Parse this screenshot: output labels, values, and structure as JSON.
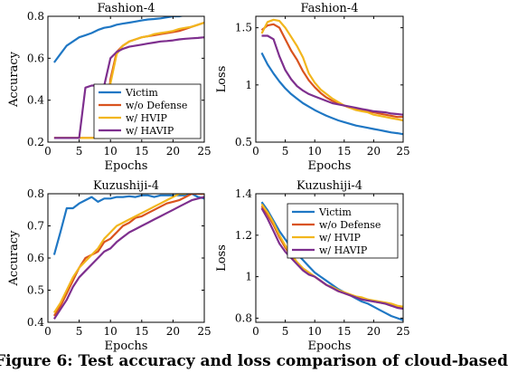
{
  "caption": "Figure 6: Test accuracy and loss comparison of cloud-based",
  "colors": {
    "victim": "#1f77c4",
    "wo_defense": "#d9531e",
    "hvip": "#f2b61d",
    "havip": "#7e2f8e"
  },
  "chart_data": [
    {
      "type": "line",
      "title": "Fashion-4",
      "xlabel": "Epochs",
      "ylabel": "Accuracy",
      "xlim": [
        0,
        25
      ],
      "ylim": [
        0.2,
        0.8
      ],
      "xticks": [
        "0",
        "5",
        "10",
        "15",
        "20",
        "25"
      ],
      "yticks": [
        "0.2",
        "0.4",
        "0.6",
        "0.8"
      ],
      "legend": "lower-center",
      "grid": false,
      "series": [
        {
          "name": "Victim",
          "color": "victim",
          "x": [
            1,
            2,
            3,
            4,
            5,
            6,
            7,
            8,
            9,
            10,
            11,
            12,
            13,
            14,
            15,
            16,
            17,
            18,
            19,
            20,
            21,
            22,
            23,
            24,
            25
          ],
          "values": [
            0.58,
            0.62,
            0.66,
            0.68,
            0.7,
            0.71,
            0.72,
            0.735,
            0.745,
            0.75,
            0.76,
            0.765,
            0.77,
            0.775,
            0.78,
            0.785,
            0.787,
            0.79,
            0.795,
            0.8,
            0.8,
            0.805,
            0.81,
            0.81,
            0.81
          ]
        },
        {
          "name": "w/o Defense",
          "color": "wo_defense",
          "x": [
            1,
            2,
            3,
            4,
            5,
            6,
            7,
            8,
            9,
            10,
            11,
            12,
            13,
            14,
            15,
            16,
            17,
            18,
            19,
            20,
            21,
            22,
            23,
            24,
            25
          ],
          "values": [
            0.22,
            0.22,
            0.22,
            0.22,
            0.22,
            0.22,
            0.22,
            0.22,
            0.22,
            0.5,
            0.63,
            0.66,
            0.68,
            0.69,
            0.7,
            0.705,
            0.71,
            0.715,
            0.72,
            0.725,
            0.73,
            0.74,
            0.75,
            0.76,
            0.77
          ]
        },
        {
          "name": "w/ HVIP",
          "color": "hvip",
          "x": [
            1,
            2,
            3,
            4,
            5,
            6,
            7,
            8,
            9,
            10,
            11,
            12,
            13,
            14,
            15,
            16,
            17,
            18,
            19,
            20,
            21,
            22,
            23,
            24,
            25
          ],
          "values": [
            0.22,
            0.22,
            0.22,
            0.22,
            0.22,
            0.22,
            0.22,
            0.22,
            0.22,
            0.48,
            0.62,
            0.66,
            0.68,
            0.69,
            0.7,
            0.705,
            0.715,
            0.72,
            0.725,
            0.73,
            0.74,
            0.745,
            0.75,
            0.76,
            0.77
          ]
        },
        {
          "name": "w/ HAVIP",
          "color": "havip",
          "x": [
            1,
            2,
            3,
            4,
            5,
            6,
            7,
            8,
            9,
            10,
            11,
            12,
            13,
            14,
            15,
            16,
            17,
            18,
            19,
            20,
            21,
            22,
            23,
            24,
            25
          ],
          "values": [
            0.22,
            0.22,
            0.22,
            0.22,
            0.22,
            0.46,
            0.47,
            0.47,
            0.47,
            0.6,
            0.63,
            0.645,
            0.655,
            0.66,
            0.665,
            0.67,
            0.675,
            0.68,
            0.682,
            0.685,
            0.69,
            0.693,
            0.695,
            0.697,
            0.7
          ]
        }
      ]
    },
    {
      "type": "line",
      "title": "Fashion-4",
      "xlabel": "Epochs",
      "ylabel": "Loss",
      "xlim": [
        0,
        25
      ],
      "ylim": [
        0.5,
        1.6
      ],
      "xticks": [
        "0",
        "5",
        "10",
        "15",
        "20",
        "25"
      ],
      "yticks": [
        "0.5",
        "1",
        "1.5"
      ],
      "grid": false,
      "series": [
        {
          "name": "Victim",
          "color": "victim",
          "x": [
            1,
            2,
            3,
            4,
            5,
            6,
            7,
            8,
            9,
            10,
            11,
            12,
            13,
            14,
            15,
            16,
            17,
            18,
            19,
            20,
            21,
            22,
            23,
            24,
            25
          ],
          "values": [
            1.28,
            1.18,
            1.1,
            1.03,
            0.97,
            0.92,
            0.88,
            0.84,
            0.81,
            0.78,
            0.755,
            0.73,
            0.71,
            0.69,
            0.675,
            0.66,
            0.645,
            0.635,
            0.625,
            0.615,
            0.605,
            0.595,
            0.585,
            0.578,
            0.57
          ]
        },
        {
          "name": "w/o Defense",
          "color": "wo_defense",
          "x": [
            1,
            2,
            3,
            4,
            5,
            6,
            7,
            8,
            9,
            10,
            11,
            12,
            13,
            14,
            15,
            16,
            17,
            18,
            19,
            20,
            21,
            22,
            23,
            24,
            25
          ],
          "values": [
            1.48,
            1.52,
            1.53,
            1.5,
            1.4,
            1.3,
            1.22,
            1.12,
            1.04,
            0.98,
            0.93,
            0.89,
            0.86,
            0.84,
            0.82,
            0.8,
            0.79,
            0.78,
            0.77,
            0.76,
            0.75,
            0.74,
            0.73,
            0.72,
            0.72
          ]
        },
        {
          "name": "w/ HVIP",
          "color": "hvip",
          "x": [
            1,
            2,
            3,
            4,
            5,
            6,
            7,
            8,
            9,
            10,
            11,
            12,
            13,
            14,
            15,
            16,
            17,
            18,
            19,
            20,
            21,
            22,
            23,
            24,
            25
          ],
          "values": [
            1.45,
            1.55,
            1.57,
            1.56,
            1.5,
            1.42,
            1.34,
            1.24,
            1.1,
            1.02,
            0.96,
            0.92,
            0.88,
            0.85,
            0.82,
            0.8,
            0.78,
            0.77,
            0.76,
            0.74,
            0.73,
            0.72,
            0.71,
            0.7,
            0.69
          ]
        },
        {
          "name": "w/ HAVIP",
          "color": "havip",
          "x": [
            1,
            2,
            3,
            4,
            5,
            6,
            7,
            8,
            9,
            10,
            11,
            12,
            13,
            14,
            15,
            16,
            17,
            18,
            19,
            20,
            21,
            22,
            23,
            24,
            25
          ],
          "values": [
            1.43,
            1.43,
            1.4,
            1.25,
            1.13,
            1.05,
            0.99,
            0.95,
            0.92,
            0.9,
            0.88,
            0.86,
            0.84,
            0.83,
            0.82,
            0.81,
            0.8,
            0.79,
            0.78,
            0.77,
            0.765,
            0.76,
            0.75,
            0.745,
            0.74
          ]
        }
      ]
    },
    {
      "type": "line",
      "title": "Kuzushiji-4",
      "xlabel": "Epochs",
      "ylabel": "Accuracy",
      "xlim": [
        0,
        25
      ],
      "ylim": [
        0.4,
        0.8
      ],
      "xticks": [
        "0",
        "5",
        "10",
        "15",
        "20",
        "25"
      ],
      "yticks": [
        "0.4",
        "0.5",
        "0.6",
        "0.7",
        "0.8"
      ],
      "grid": false,
      "series": [
        {
          "name": "Victim",
          "color": "victim",
          "x": [
            1,
            2,
            3,
            4,
            5,
            6,
            7,
            8,
            9,
            10,
            11,
            12,
            13,
            14,
            15,
            16,
            17,
            18,
            19,
            20,
            21,
            22,
            23,
            24,
            25
          ],
          "values": [
            0.61,
            0.68,
            0.755,
            0.755,
            0.77,
            0.78,
            0.79,
            0.775,
            0.785,
            0.785,
            0.79,
            0.79,
            0.792,
            0.79,
            0.795,
            0.795,
            0.79,
            0.795,
            0.795,
            0.795,
            0.795,
            0.795,
            0.8,
            0.79,
            0.785
          ]
        },
        {
          "name": "w/o Defense",
          "color": "wo_defense",
          "x": [
            1,
            2,
            3,
            4,
            5,
            6,
            7,
            8,
            9,
            10,
            11,
            12,
            13,
            14,
            15,
            16,
            17,
            18,
            19,
            20,
            21,
            22,
            23,
            24,
            25
          ],
          "values": [
            0.42,
            0.45,
            0.49,
            0.53,
            0.57,
            0.6,
            0.61,
            0.62,
            0.65,
            0.66,
            0.68,
            0.7,
            0.71,
            0.725,
            0.73,
            0.74,
            0.75,
            0.76,
            0.77,
            0.775,
            0.78,
            0.79,
            0.8,
            0.8,
            0.8
          ]
        },
        {
          "name": "w/ HVIP",
          "color": "hvip",
          "x": [
            1,
            2,
            3,
            4,
            5,
            6,
            7,
            8,
            9,
            10,
            11,
            12,
            13,
            14,
            15,
            16,
            17,
            18,
            19,
            20,
            21,
            22,
            23,
            24,
            25
          ],
          "values": [
            0.43,
            0.46,
            0.5,
            0.54,
            0.57,
            0.59,
            0.61,
            0.63,
            0.66,
            0.68,
            0.7,
            0.71,
            0.72,
            0.73,
            0.74,
            0.75,
            0.76,
            0.77,
            0.78,
            0.79,
            0.8,
            0.8,
            0.81,
            0.81,
            0.8
          ]
        },
        {
          "name": "w/ HAVIP",
          "color": "havip",
          "x": [
            1,
            2,
            3,
            4,
            5,
            6,
            7,
            8,
            9,
            10,
            11,
            12,
            13,
            14,
            15,
            16,
            17,
            18,
            19,
            20,
            21,
            22,
            23,
            24,
            25
          ],
          "values": [
            0.41,
            0.44,
            0.47,
            0.51,
            0.54,
            0.56,
            0.58,
            0.6,
            0.62,
            0.63,
            0.65,
            0.665,
            0.68,
            0.69,
            0.7,
            0.71,
            0.72,
            0.73,
            0.74,
            0.75,
            0.76,
            0.77,
            0.78,
            0.785,
            0.79
          ]
        }
      ]
    },
    {
      "type": "line",
      "title": "Kuzushiji-4",
      "xlabel": "Epochs",
      "ylabel": "Loss",
      "xlim": [
        0,
        25
      ],
      "ylim": [
        0.78,
        1.4
      ],
      "xticks": [
        "0",
        "5",
        "10",
        "15",
        "20",
        "25"
      ],
      "yticks": [
        "0.8",
        "1",
        "1.2",
        "1.4"
      ],
      "legend": "upper-right",
      "grid": false,
      "series": [
        {
          "name": "Victim",
          "color": "victim",
          "x": [
            1,
            2,
            3,
            4,
            5,
            6,
            7,
            8,
            9,
            10,
            11,
            12,
            13,
            14,
            15,
            16,
            17,
            18,
            19,
            20,
            21,
            22,
            23,
            24,
            25
          ],
          "values": [
            1.36,
            1.32,
            1.27,
            1.22,
            1.18,
            1.14,
            1.11,
            1.08,
            1.05,
            1.02,
            1.0,
            0.98,
            0.96,
            0.94,
            0.925,
            0.91,
            0.895,
            0.88,
            0.87,
            0.855,
            0.84,
            0.825,
            0.81,
            0.8,
            0.79
          ]
        },
        {
          "name": "w/o Defense",
          "color": "wo_defense",
          "x": [
            1,
            2,
            3,
            4,
            5,
            6,
            7,
            8,
            9,
            10,
            11,
            12,
            13,
            14,
            15,
            16,
            17,
            18,
            19,
            20,
            21,
            22,
            23,
            24,
            25
          ],
          "values": [
            1.34,
            1.3,
            1.25,
            1.19,
            1.14,
            1.1,
            1.07,
            1.04,
            1.02,
            1.0,
            0.98,
            0.96,
            0.945,
            0.93,
            0.92,
            0.91,
            0.9,
            0.895,
            0.89,
            0.88,
            0.875,
            0.87,
            0.86,
            0.855,
            0.85
          ]
        },
        {
          "name": "w/ HVIP",
          "color": "hvip",
          "x": [
            1,
            2,
            3,
            4,
            5,
            6,
            7,
            8,
            9,
            10,
            11,
            12,
            13,
            14,
            15,
            16,
            17,
            18,
            19,
            20,
            21,
            22,
            23,
            24,
            25
          ],
          "values": [
            1.35,
            1.31,
            1.26,
            1.2,
            1.15,
            1.11,
            1.07,
            1.04,
            1.02,
            1.0,
            0.98,
            0.96,
            0.95,
            0.935,
            0.925,
            0.915,
            0.905,
            0.9,
            0.89,
            0.885,
            0.88,
            0.875,
            0.87,
            0.86,
            0.855
          ]
        },
        {
          "name": "w/ HAVIP",
          "color": "havip",
          "x": [
            1,
            2,
            3,
            4,
            5,
            6,
            7,
            8,
            9,
            10,
            11,
            12,
            13,
            14,
            15,
            16,
            17,
            18,
            19,
            20,
            21,
            22,
            23,
            24,
            25
          ],
          "values": [
            1.33,
            1.28,
            1.22,
            1.16,
            1.12,
            1.09,
            1.06,
            1.03,
            1.01,
            1.0,
            0.98,
            0.96,
            0.945,
            0.93,
            0.92,
            0.91,
            0.9,
            0.89,
            0.885,
            0.88,
            0.875,
            0.87,
            0.86,
            0.85,
            0.845
          ]
        }
      ]
    }
  ]
}
